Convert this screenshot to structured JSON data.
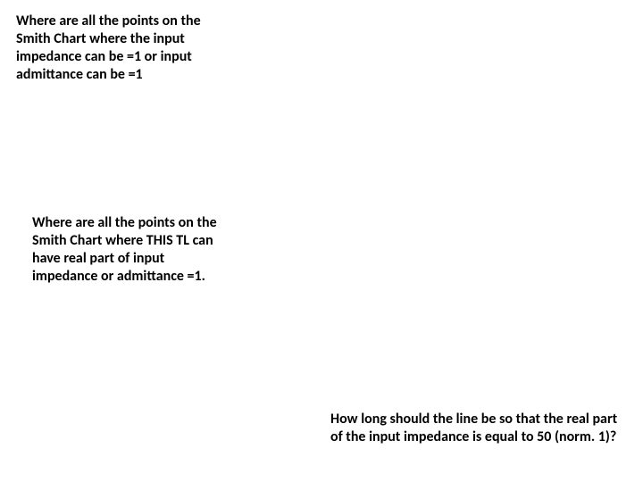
{
  "slide": {
    "background_color": "#ffffff",
    "text_color": "#000000",
    "font_family": "Calibri",
    "font_weight": "bold",
    "font_size_pt": 12,
    "blocks": {
      "top_left": "Where are all the points on the Smith Chart where the input impedance can be =1 or input admittance can be =1",
      "mid_left": "Where are all the points on the Smith Chart where THIS TL can have real part of input impedance or admittance =1.",
      "bottom_right": "How long should the line be so that the real part of the input impedance is equal to 50 (norm. 1)?"
    }
  }
}
